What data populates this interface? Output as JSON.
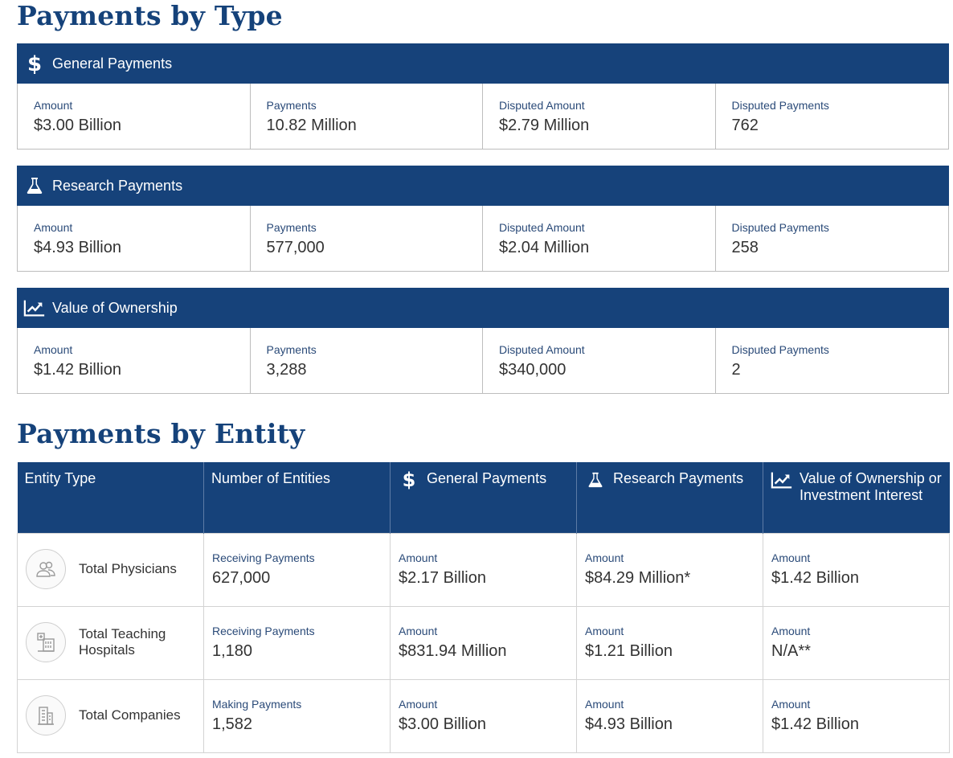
{
  "payments_by_type": {
    "title": "Payments by Type",
    "cards": [
      {
        "title": "General Payments",
        "icon": "dollar-icon",
        "cells": [
          {
            "label": "Amount",
            "value": "$3.00 Billion"
          },
          {
            "label": "Payments",
            "value": "10.82 Million"
          },
          {
            "label": "Disputed Amount",
            "value": "$2.79 Million"
          },
          {
            "label": "Disputed Payments",
            "value": "762"
          }
        ]
      },
      {
        "title": "Research Payments",
        "icon": "flask-icon",
        "cells": [
          {
            "label": "Amount",
            "value": "$4.93 Billion"
          },
          {
            "label": "Payments",
            "value": "577,000"
          },
          {
            "label": "Disputed Amount",
            "value": "$2.04 Million"
          },
          {
            "label": "Disputed Payments",
            "value": "258"
          }
        ]
      },
      {
        "title": "Value of Ownership",
        "icon": "trend-chart-icon",
        "cells": [
          {
            "label": "Amount",
            "value": "$1.42 Billion"
          },
          {
            "label": "Payments",
            "value": "3,288"
          },
          {
            "label": "Disputed Amount",
            "value": "$340,000"
          },
          {
            "label": "Disputed Payments",
            "value": "2"
          }
        ]
      }
    ]
  },
  "payments_by_entity": {
    "title": "Payments by Entity",
    "headers": [
      "Entity Type",
      "Number of Entities",
      "General Payments",
      "Research Payments",
      "Value of Ownership or Investment Interest"
    ],
    "rows": [
      {
        "entity": "Total Physicians",
        "icon": "physicians-icon",
        "count_label": "Receiving Payments",
        "count": "627,000",
        "general_label": "Amount",
        "general": "$2.17 Billion",
        "research_label": "Amount",
        "research": "$84.29 Million*",
        "ownership_label": "Amount",
        "ownership": "$1.42 Billion"
      },
      {
        "entity": "Total Teaching Hospitals",
        "icon": "hospital-icon",
        "count_label": "Receiving Payments",
        "count": "1,180",
        "general_label": "Amount",
        "general": "$831.94 Million",
        "research_label": "Amount",
        "research": "$1.21 Billion",
        "ownership_label": "Amount",
        "ownership": "N/A**"
      },
      {
        "entity": "Total Companies",
        "icon": "building-icon",
        "count_label": "Making Payments",
        "count": "1,582",
        "general_label": "Amount",
        "general": "$3.00 Billion",
        "research_label": "Amount",
        "research": "$4.93 Billion",
        "ownership_label": "Amount",
        "ownership": "$1.42 Billion"
      }
    ]
  },
  "colors": {
    "header_bg": "#16427a",
    "title": "#15427a",
    "label": "#2a4a78"
  }
}
